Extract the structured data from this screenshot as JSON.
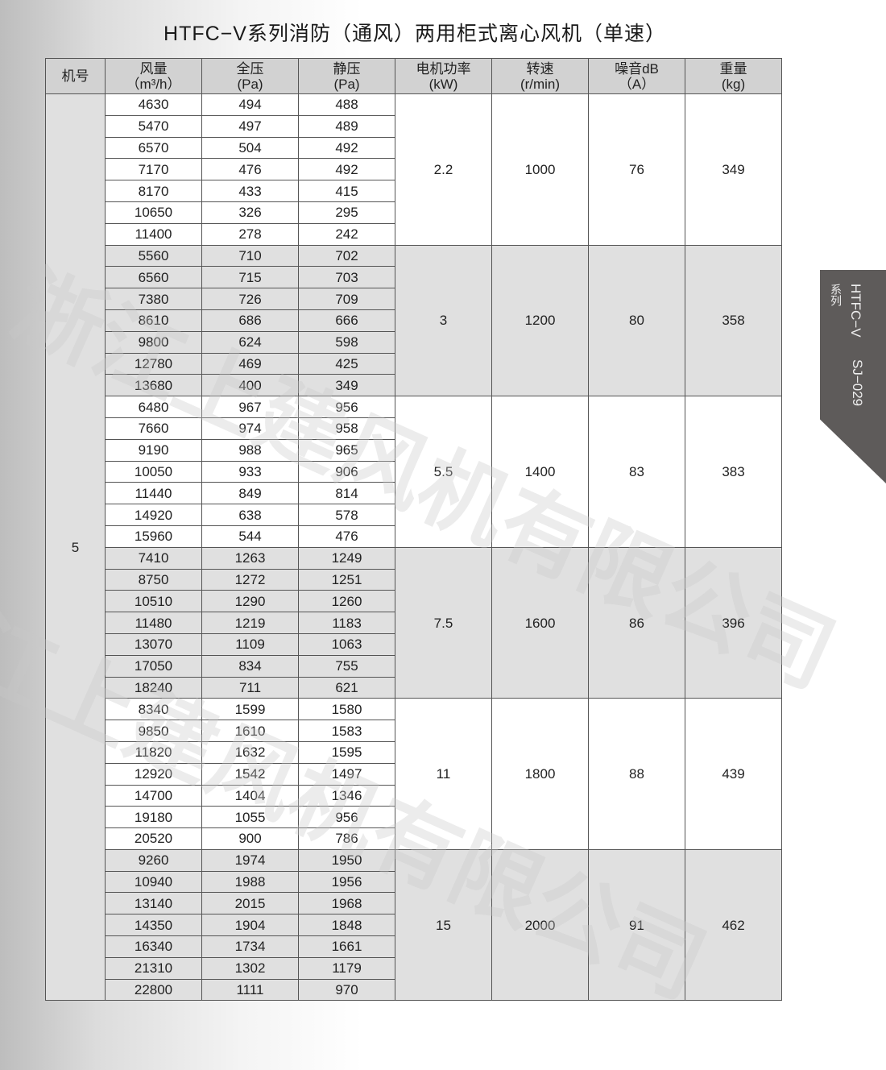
{
  "title": "HTFC−V系列消防（通风）两用柜式离心风机（单速）",
  "side_tab": {
    "series": "HTFC−V",
    "series_label": "系列",
    "page_code": "SJ−029",
    "color": "#5e5b5a"
  },
  "watermark": "浙江上建风机有限公司",
  "table": {
    "headers": [
      {
        "line1": "机号",
        "line2": ""
      },
      {
        "line1": "风量",
        "line2": "（m³/h）"
      },
      {
        "line1": "全压",
        "line2": "(Pa)"
      },
      {
        "line1": "静压",
        "line2": "(Pa)"
      },
      {
        "line1": "电机功率",
        "line2": "(kW)"
      },
      {
        "line1": "转速",
        "line2": "(r/min)"
      },
      {
        "line1": "噪音dB",
        "line2": "（A）"
      },
      {
        "line1": "重量",
        "line2": "(kg)"
      }
    ],
    "model": "5",
    "groups": [
      {
        "power": "2.2",
        "speed": "1000",
        "noise": "76",
        "weight": "349",
        "rows": [
          [
            "4630",
            "494",
            "488"
          ],
          [
            "5470",
            "497",
            "489"
          ],
          [
            "6570",
            "504",
            "492"
          ],
          [
            "7170",
            "476",
            "492"
          ],
          [
            "8170",
            "433",
            "415"
          ],
          [
            "10650",
            "326",
            "295"
          ],
          [
            "11400",
            "278",
            "242"
          ]
        ]
      },
      {
        "power": "3",
        "speed": "1200",
        "noise": "80",
        "weight": "358",
        "rows": [
          [
            "5560",
            "710",
            "702"
          ],
          [
            "6560",
            "715",
            "703"
          ],
          [
            "7380",
            "726",
            "709"
          ],
          [
            "8610",
            "686",
            "666"
          ],
          [
            "9800",
            "624",
            "598"
          ],
          [
            "12780",
            "469",
            "425"
          ],
          [
            "13680",
            "400",
            "349"
          ]
        ]
      },
      {
        "power": "5.5",
        "speed": "1400",
        "noise": "83",
        "weight": "383",
        "rows": [
          [
            "6480",
            "967",
            "956"
          ],
          [
            "7660",
            "974",
            "958"
          ],
          [
            "9190",
            "988",
            "965"
          ],
          [
            "10050",
            "933",
            "906"
          ],
          [
            "11440",
            "849",
            "814"
          ],
          [
            "14920",
            "638",
            "578"
          ],
          [
            "15960",
            "544",
            "476"
          ]
        ]
      },
      {
        "power": "7.5",
        "speed": "1600",
        "noise": "86",
        "weight": "396",
        "rows": [
          [
            "7410",
            "1263",
            "1249"
          ],
          [
            "8750",
            "1272",
            "1251"
          ],
          [
            "10510",
            "1290",
            "1260"
          ],
          [
            "11480",
            "1219",
            "1183"
          ],
          [
            "13070",
            "1109",
            "1063"
          ],
          [
            "17050",
            "834",
            "755"
          ],
          [
            "18240",
            "711",
            "621"
          ]
        ]
      },
      {
        "power": "11",
        "speed": "1800",
        "noise": "88",
        "weight": "439",
        "rows": [
          [
            "8340",
            "1599",
            "1580"
          ],
          [
            "9850",
            "1610",
            "1583"
          ],
          [
            "11820",
            "1632",
            "1595"
          ],
          [
            "12920",
            "1542",
            "1497"
          ],
          [
            "14700",
            "1404",
            "1346"
          ],
          [
            "19180",
            "1055",
            "956"
          ],
          [
            "20520",
            "900",
            "786"
          ]
        ]
      },
      {
        "power": "15",
        "speed": "2000",
        "noise": "91",
        "weight": "462",
        "rows": [
          [
            "9260",
            "1974",
            "1950"
          ],
          [
            "10940",
            "1988",
            "1956"
          ],
          [
            "13140",
            "2015",
            "1968"
          ],
          [
            "14350",
            "1904",
            "1848"
          ],
          [
            "16340",
            "1734",
            "1661"
          ],
          [
            "21310",
            "1302",
            "1179"
          ],
          [
            "22800",
            "1111",
            "970"
          ]
        ]
      }
    ]
  }
}
